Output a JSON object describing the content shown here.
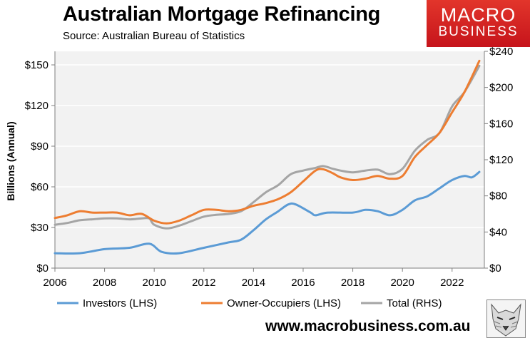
{
  "header": {
    "title": "Australian Mortgage Refinancing",
    "subtitle": "Source: Australian Bureau of Statistics",
    "logo_line1": "MACRO",
    "logo_line2": "BUSINESS"
  },
  "footer": {
    "website": "www.macrobusiness.com.au"
  },
  "colors": {
    "investors": "#5b9bd5",
    "owner_occupiers": "#ed7d31",
    "total": "#a5a5a5",
    "plot_background": "#f2f2f2",
    "logo_red": "#d7261f"
  },
  "chart_data": {
    "type": "line",
    "title": "Australian Mortgage Refinancing",
    "subtitle": "Source: Australian Bureau of Statistics",
    "ylabel": "Billions (Annual)",
    "xlabel": "",
    "xlim": [
      2006,
      2023.3
    ],
    "x_ticks": [
      "2006",
      "2008",
      "2010",
      "2012",
      "2014",
      "2016",
      "2018",
      "2020",
      "2022"
    ],
    "x_tick_values": [
      2006,
      2008,
      2010,
      2012,
      2014,
      2016,
      2018,
      2020,
      2022
    ],
    "y_left": {
      "lim": [
        0,
        160
      ],
      "ticks": [
        "$0",
        "$30",
        "$60",
        "$90",
        "$120",
        "$150"
      ],
      "tick_values": [
        0,
        30,
        60,
        90,
        120,
        150
      ]
    },
    "y_right": {
      "lim": [
        0,
        240
      ],
      "ticks": [
        "$0",
        "$40",
        "$80",
        "$120",
        "$160",
        "$200",
        "$240"
      ],
      "tick_values": [
        0,
        40,
        80,
        120,
        160,
        200,
        240
      ]
    },
    "grid": "horizontal",
    "legend": "bottom",
    "series": [
      {
        "name": "Investors (LHS)",
        "axis": "left",
        "color": "#5b9bd5",
        "x": [
          2006,
          2007,
          2008,
          2009,
          2009.8,
          2010.3,
          2011,
          2012,
          2013,
          2013.5,
          2014,
          2014.5,
          2015,
          2015.4,
          2015.7,
          2016.3,
          2016.5,
          2017,
          2018,
          2018.5,
          2019,
          2019.5,
          2020,
          2020.5,
          2021,
          2021.5,
          2022,
          2022.5,
          2022.8,
          2023.1
        ],
        "values": [
          11,
          11,
          14,
          15,
          18,
          12,
          11,
          15,
          19,
          21,
          28,
          36,
          42,
          47,
          47,
          41,
          39,
          41,
          41,
          43,
          42,
          39,
          43,
          50,
          53,
          59,
          65,
          68,
          67,
          71
        ]
      },
      {
        "name": "Owner-Occupiers (LHS)",
        "axis": "left",
        "color": "#ed7d31",
        "x": [
          2006,
          2006.5,
          2007,
          2007.5,
          2008,
          2008.5,
          2009,
          2009.5,
          2010,
          2010.5,
          2011,
          2011.5,
          2012,
          2012.5,
          2013,
          2013.5,
          2014,
          2014.5,
          2015,
          2015.5,
          2016,
          2016.5,
          2016.8,
          2017.2,
          2017.5,
          2018,
          2018.5,
          2019,
          2019.5,
          2020,
          2020.5,
          2021,
          2021.5,
          2022,
          2022.5,
          2023.1
        ],
        "values": [
          37,
          39,
          42,
          41,
          41,
          41,
          39,
          40,
          35,
          33,
          35,
          39,
          43,
          43,
          42,
          43,
          46,
          48,
          51,
          56,
          64,
          72,
          73,
          70,
          67,
          65,
          66,
          68,
          66,
          68,
          82,
          91,
          100,
          115,
          130,
          153
        ]
      },
      {
        "name": "Total (RHS)",
        "axis": "right",
        "color": "#a5a5a5",
        "x": [
          2006,
          2006.5,
          2007,
          2007.5,
          2008,
          2008.5,
          2009,
          2009.5,
          2009.8,
          2010,
          2010.5,
          2011,
          2011.5,
          2012,
          2012.5,
          2013,
          2013.5,
          2014,
          2014.5,
          2015,
          2015.5,
          2016,
          2016.5,
          2016.8,
          2017.2,
          2017.5,
          2018,
          2018.5,
          2019,
          2019.5,
          2020,
          2020.5,
          2021,
          2021.5,
          2022,
          2022.5,
          2023.1
        ],
        "values": [
          48,
          50,
          53,
          54,
          55,
          55,
          54,
          55,
          55,
          48,
          44,
          47,
          52,
          57,
          59,
          60,
          63,
          73,
          84,
          92,
          104,
          108,
          111,
          113,
          110,
          108,
          106,
          108,
          109,
          104,
          110,
          130,
          142,
          150,
          179,
          195,
          224
        ]
      }
    ]
  }
}
